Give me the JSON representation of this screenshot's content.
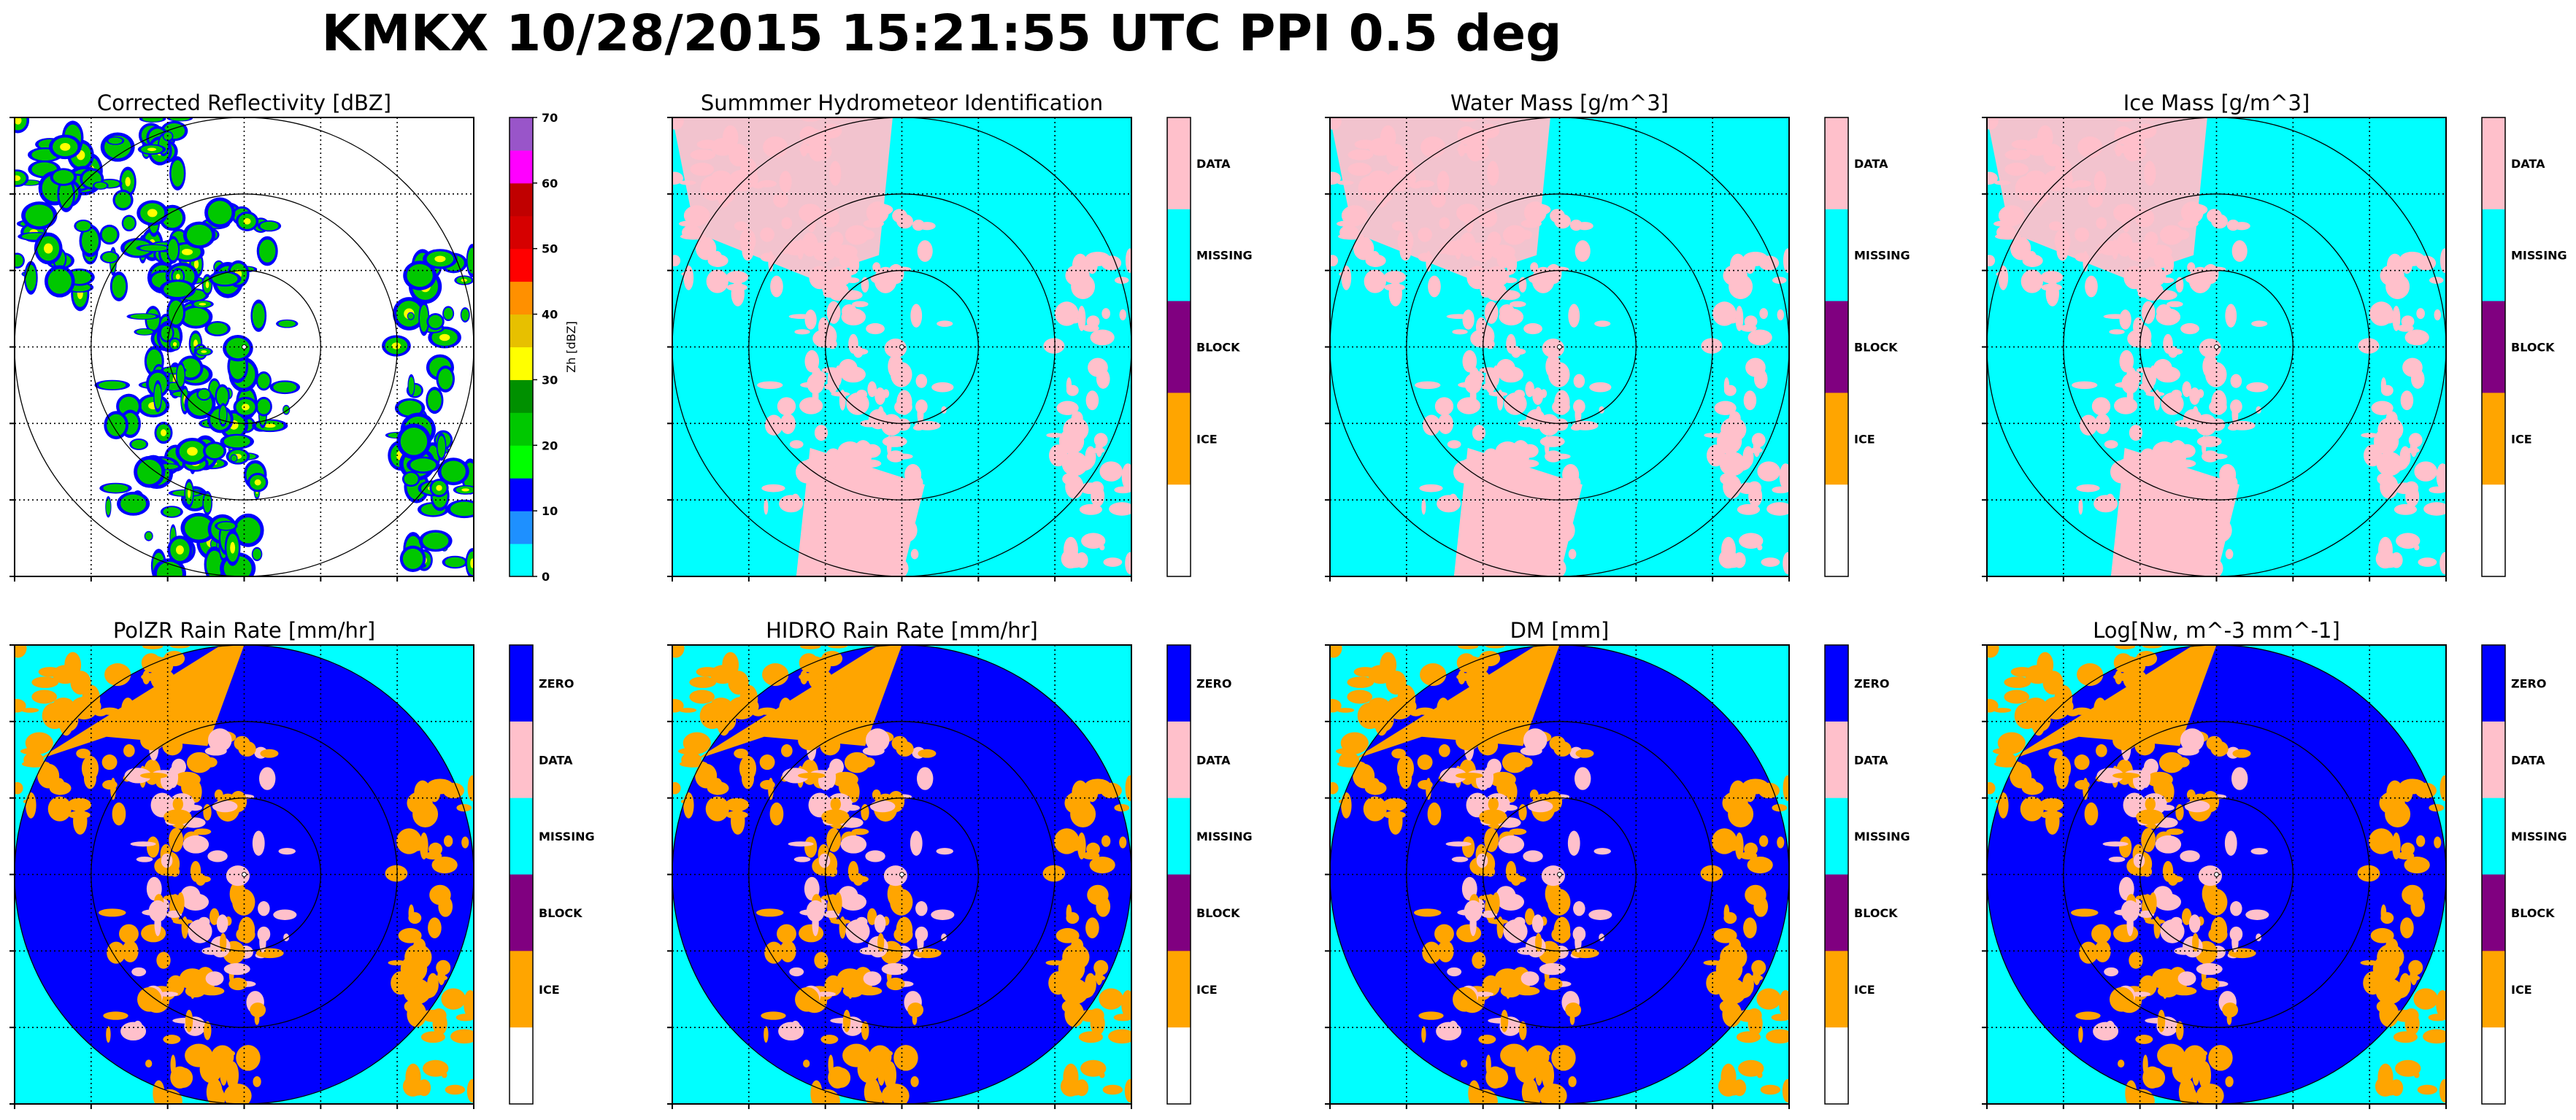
{
  "figure_title": "KMKX 10/28/2015 15:21:55 UTC PPI 0.5 deg",
  "colors": {
    "zero": "#0000ff",
    "data": "#ffc0cb",
    "missing": "#00ffff",
    "block": "#800080",
    "ice": "#ffa500",
    "blank": "#ffffff",
    "refl_scale": [
      "#00ffff",
      "#1e90ff",
      "#0000ff",
      "#00ff00",
      "#00c800",
      "#009000",
      "#ffff00",
      "#e7c000",
      "#ff9000",
      "#ff0000",
      "#d60000",
      "#c00000",
      "#ff00ff",
      "#9955c9"
    ]
  },
  "chart_data": [
    {
      "type": "heatmap",
      "title": "Corrected Reflectivity [dBZ]",
      "colorbar": {
        "kind": "continuous",
        "label": "Zh [dBZ]",
        "ticks": [
          0,
          10,
          20,
          30,
          40,
          50,
          60,
          70
        ],
        "range": [
          0,
          70
        ]
      },
      "background": "blank",
      "echo_scheme": "reflectivity",
      "range_rings": 3
    },
    {
      "type": "heatmap",
      "title": "Summmer Hydrometeor Identification",
      "colorbar": {
        "kind": "categorical",
        "categories": [
          "DATA",
          "MISSING",
          "BLOCK",
          "ICE"
        ],
        "has_blank_bottom": true
      },
      "background": "missing",
      "echo_scheme": "data",
      "range_rings": 3
    },
    {
      "type": "heatmap",
      "title": "Water Mass [g/m^3]",
      "colorbar": {
        "kind": "categorical",
        "categories": [
          "DATA",
          "MISSING",
          "BLOCK",
          "ICE"
        ],
        "has_blank_bottom": true
      },
      "background": "missing",
      "echo_scheme": "data",
      "range_rings": 3
    },
    {
      "type": "heatmap",
      "title": "Ice Mass [g/m^3]",
      "colorbar": {
        "kind": "categorical",
        "categories": [
          "DATA",
          "MISSING",
          "BLOCK",
          "ICE"
        ],
        "has_blank_bottom": true
      },
      "background": "missing",
      "echo_scheme": "data",
      "range_rings": 3
    },
    {
      "type": "heatmap",
      "title": "PolZR Rain Rate [mm/hr]",
      "colorbar": {
        "kind": "categorical",
        "categories": [
          "ZERO",
          "DATA",
          "MISSING",
          "BLOCK",
          "ICE"
        ],
        "has_blank_bottom": true
      },
      "background": "missing",
      "disk": "zero",
      "echo_scheme": "ice",
      "range_rings": 3
    },
    {
      "type": "heatmap",
      "title": "HIDRO Rain Rate [mm/hr]",
      "colorbar": {
        "kind": "categorical",
        "categories": [
          "ZERO",
          "DATA",
          "MISSING",
          "BLOCK",
          "ICE"
        ],
        "has_blank_bottom": true
      },
      "background": "missing",
      "disk": "zero",
      "echo_scheme": "ice",
      "range_rings": 3
    },
    {
      "type": "heatmap",
      "title": "DM [mm]",
      "colorbar": {
        "kind": "categorical",
        "categories": [
          "ZERO",
          "DATA",
          "MISSING",
          "BLOCK",
          "ICE"
        ],
        "has_blank_bottom": true
      },
      "background": "missing",
      "disk": "zero",
      "echo_scheme": "ice",
      "range_rings": 3
    },
    {
      "type": "heatmap",
      "title": "Log[Nw, m^-3 mm^-1]",
      "colorbar": {
        "kind": "categorical",
        "categories": [
          "ZERO",
          "DATA",
          "MISSING",
          "BLOCK",
          "ICE"
        ],
        "has_blank_bottom": true
      },
      "background": "missing",
      "disk": "zero",
      "echo_scheme": "ice",
      "range_rings": 3
    }
  ]
}
